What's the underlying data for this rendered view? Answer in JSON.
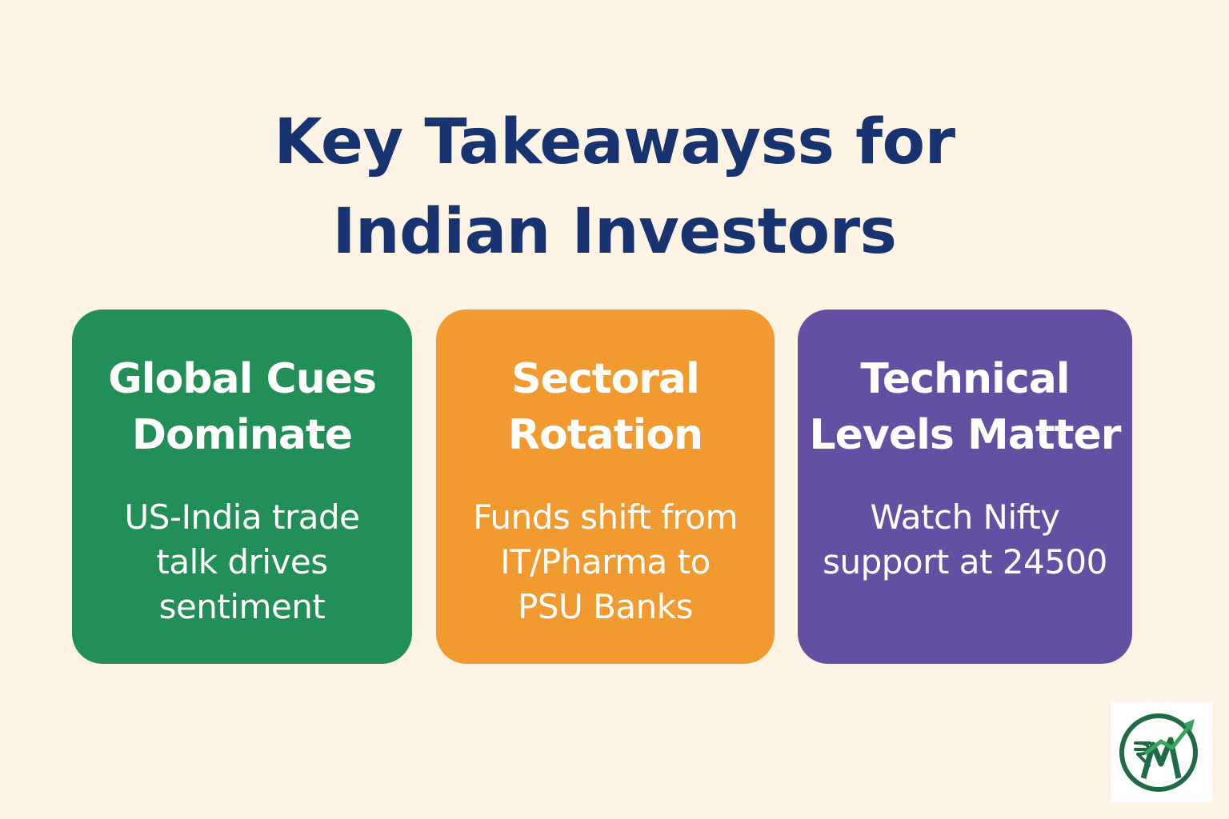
{
  "title": {
    "line1": "Key Takeawayss for",
    "line2": "Indian Investors",
    "color": "#183470"
  },
  "background_color": "#fdf4e6",
  "cards": [
    {
      "heading": [
        "Global Cues",
        "Dominate"
      ],
      "body": [
        "US-India trade",
        "talk drives",
        "sentiment"
      ],
      "color": "#218f57"
    },
    {
      "heading": [
        "Sectoral",
        "Rotation"
      ],
      "body": [
        "Funds shift from",
        "IT/Pharma to",
        "PSU Banks"
      ],
      "color": "#f09a30"
    },
    {
      "heading": [
        "Technical",
        "Levels Matter"
      ],
      "body": [
        "Watch Nifty",
        "support at 24500"
      ],
      "color": "#6350a3"
    }
  ],
  "logo": {
    "icon": "rupee-growth-chart-logo",
    "colors": {
      "ring": "#1e6b45",
      "arrow": "#39a35a"
    }
  }
}
